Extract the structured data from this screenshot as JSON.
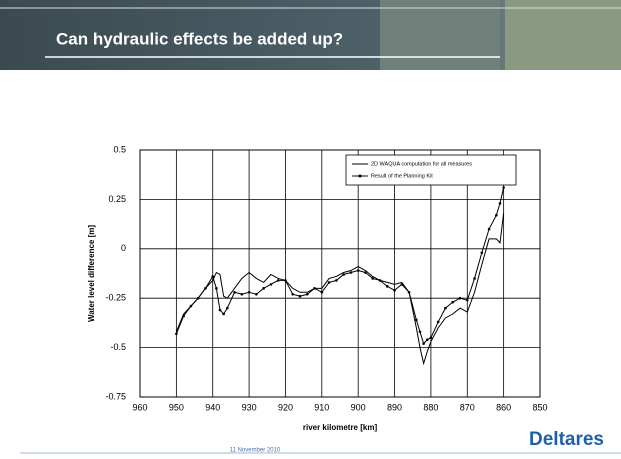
{
  "slide_title": "Can hydraulic effects be added up?",
  "footer_date": "11 November 2010",
  "logo": "Deltares",
  "chart_data": {
    "type": "line",
    "xlabel": "river kilometre [km]",
    "ylabel": "Water level difference [m]",
    "x": [
      950,
      948,
      946,
      944,
      942,
      940,
      939,
      938,
      937,
      936,
      934,
      932,
      930,
      928,
      926,
      924,
      922,
      920,
      918,
      916,
      914,
      912,
      910,
      908,
      906,
      904,
      902,
      900,
      898,
      896,
      894,
      892,
      890,
      888,
      886,
      884,
      883,
      882,
      881,
      880,
      878,
      876,
      874,
      872,
      870,
      868,
      866,
      864,
      862,
      861,
      860
    ],
    "series": [
      {
        "name": "2D WAQUA computation for all measures",
        "color": "#000000",
        "marker": false,
        "values": [
          -0.42,
          -0.33,
          -0.29,
          -0.25,
          -0.2,
          -0.16,
          -0.12,
          -0.13,
          -0.24,
          -0.25,
          -0.2,
          -0.15,
          -0.12,
          -0.15,
          -0.17,
          -0.13,
          -0.15,
          -0.16,
          -0.2,
          -0.22,
          -0.22,
          -0.2,
          -0.2,
          -0.15,
          -0.14,
          -0.12,
          -0.11,
          -0.09,
          -0.11,
          -0.14,
          -0.16,
          -0.17,
          -0.18,
          -0.17,
          -0.22,
          -0.4,
          -0.5,
          -0.58,
          -0.52,
          -0.47,
          -0.4,
          -0.35,
          -0.33,
          -0.3,
          -0.32,
          -0.22,
          -0.08,
          0.05,
          0.05,
          0.03,
          0.18
        ]
      },
      {
        "name": "Result of the Planning Kit",
        "color": "#000000",
        "marker": true,
        "values": [
          -0.43,
          -0.34,
          -0.29,
          -0.25,
          -0.2,
          -0.14,
          -0.2,
          -0.31,
          -0.33,
          -0.3,
          -0.22,
          -0.23,
          -0.22,
          -0.23,
          -0.2,
          -0.18,
          -0.16,
          -0.16,
          -0.23,
          -0.24,
          -0.23,
          -0.2,
          -0.22,
          -0.17,
          -0.16,
          -0.13,
          -0.12,
          -0.11,
          -0.12,
          -0.15,
          -0.16,
          -0.19,
          -0.21,
          -0.18,
          -0.22,
          -0.36,
          -0.42,
          -0.48,
          -0.46,
          -0.45,
          -0.37,
          -0.3,
          -0.27,
          -0.25,
          -0.26,
          -0.15,
          -0.02,
          0.1,
          0.17,
          0.23,
          0.31
        ]
      }
    ],
    "xlim": [
      960,
      850
    ],
    "xticks": [
      960,
      950,
      940,
      930,
      920,
      910,
      900,
      890,
      880,
      870,
      860,
      850
    ],
    "ylim": [
      -0.75,
      0.5
    ],
    "yticks": [
      0.5,
      0.25,
      0,
      -0.25,
      -0.5,
      -0.75
    ],
    "grid": true,
    "legend": "upper right"
  }
}
